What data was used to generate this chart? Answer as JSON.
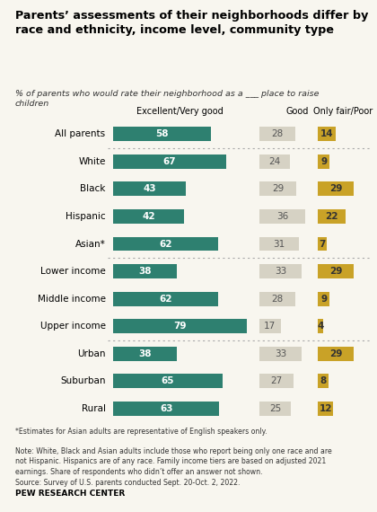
{
  "title": "Parents’ assessments of their neighborhoods differ by\nrace and ethnicity, income level, community type",
  "subtitle": "% of parents who would rate their neighborhood as a ___ place to raise\nchildren",
  "categories": [
    "All parents",
    "White",
    "Black",
    "Hispanic",
    "Asian*",
    "Lower income",
    "Middle income",
    "Upper income",
    "Urban",
    "Suburban",
    "Rural"
  ],
  "excellent": [
    58,
    67,
    43,
    42,
    62,
    38,
    62,
    79,
    38,
    65,
    63
  ],
  "good": [
    28,
    24,
    29,
    36,
    31,
    33,
    28,
    17,
    33,
    27,
    25
  ],
  "poor": [
    14,
    9,
    29,
    22,
    7,
    29,
    9,
    4,
    29,
    8,
    12
  ],
  "color_excellent": "#2e8070",
  "color_good": "#d6d2c4",
  "color_poor": "#c9a227",
  "col_headers": [
    "Excellent/Very good",
    "Good",
    "Only fair/Poor"
  ],
  "footnote1": "*Estimates for Asian adults are representative of English speakers only.",
  "footnote2": "Note: White, Black and Asian adults include those who report being only one race and are\nnot Hispanic. Hispanics are of any race. Family income tiers are based on adjusted 2021\nearnings. Share of respondents who didn’t offer an answer not shown.\nSource: Survey of U.S. parents conducted Sept. 20-Oct. 2, 2022.",
  "source_label": "PEW RESEARCH CENTER",
  "bg_color": "#f8f6ef"
}
